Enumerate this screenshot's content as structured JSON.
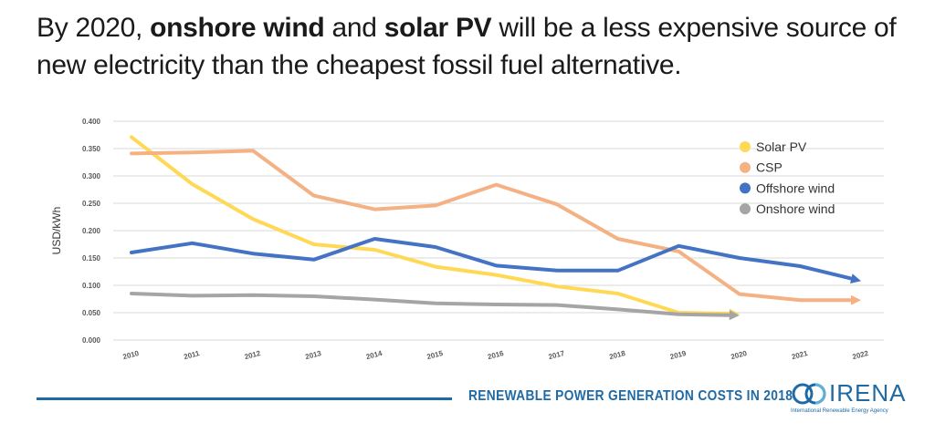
{
  "headline": {
    "p1": "By 2020, ",
    "b1": "onshore wind",
    "p2": " and ",
    "b2": "solar PV",
    "p3": " will be a less expensive source of new electricity than the cheapest fossil fuel alternative."
  },
  "footer": {
    "title": "RENEWABLE POWER GENERATION COSTS IN 2018",
    "logo_name": "IRENA",
    "logo_sub": "International Renewable Energy Agency",
    "logo_icon": "irena-globe-icon",
    "accent": "#1f6aa5"
  },
  "chart_data": {
    "type": "line",
    "x": [
      2010,
      2011,
      2012,
      2013,
      2014,
      2015,
      2016,
      2017,
      2018,
      2019,
      2020,
      2021,
      2022
    ],
    "ylabel": "USD/kWh",
    "ylim": [
      0,
      0.4
    ],
    "yticks": [
      "0.000",
      "0.050",
      "0.100",
      "0.150",
      "0.200",
      "0.250",
      "0.300",
      "0.350",
      "0.400"
    ],
    "grid": true,
    "legend": "top-right",
    "series": [
      {
        "name": "Solar PV",
        "color": "#ffd955",
        "x": [
          2010,
          2011,
          2012,
          2013,
          2014,
          2015,
          2016,
          2017,
          2018,
          2019,
          2020
        ],
        "values": [
          0.371,
          0.285,
          0.221,
          0.175,
          0.165,
          0.134,
          0.119,
          0.098,
          0.085,
          0.05,
          0.048
        ]
      },
      {
        "name": "CSP",
        "color": "#f4b183",
        "x": [
          2010,
          2011,
          2012,
          2013,
          2014,
          2015,
          2016,
          2017,
          2018,
          2019,
          2020,
          2021,
          2022
        ],
        "values": [
          0.341,
          0.343,
          0.346,
          0.264,
          0.239,
          0.246,
          0.284,
          0.248,
          0.185,
          0.162,
          0.084,
          0.073,
          0.073
        ]
      },
      {
        "name": "Offshore wind",
        "color": "#4472c4",
        "x": [
          2010,
          2011,
          2012,
          2013,
          2014,
          2015,
          2016,
          2017,
          2018,
          2019,
          2020,
          2021,
          2022
        ],
        "values": [
          0.16,
          0.177,
          0.158,
          0.147,
          0.185,
          0.17,
          0.136,
          0.127,
          0.127,
          0.172,
          0.15,
          0.135,
          0.108
        ]
      },
      {
        "name": "Onshore wind",
        "color": "#a5a5a5",
        "x": [
          2010,
          2011,
          2012,
          2013,
          2014,
          2015,
          2016,
          2017,
          2018,
          2019,
          2020
        ],
        "values": [
          0.085,
          0.081,
          0.082,
          0.08,
          0.074,
          0.067,
          0.065,
          0.064,
          0.056,
          0.047,
          0.045
        ]
      }
    ]
  }
}
